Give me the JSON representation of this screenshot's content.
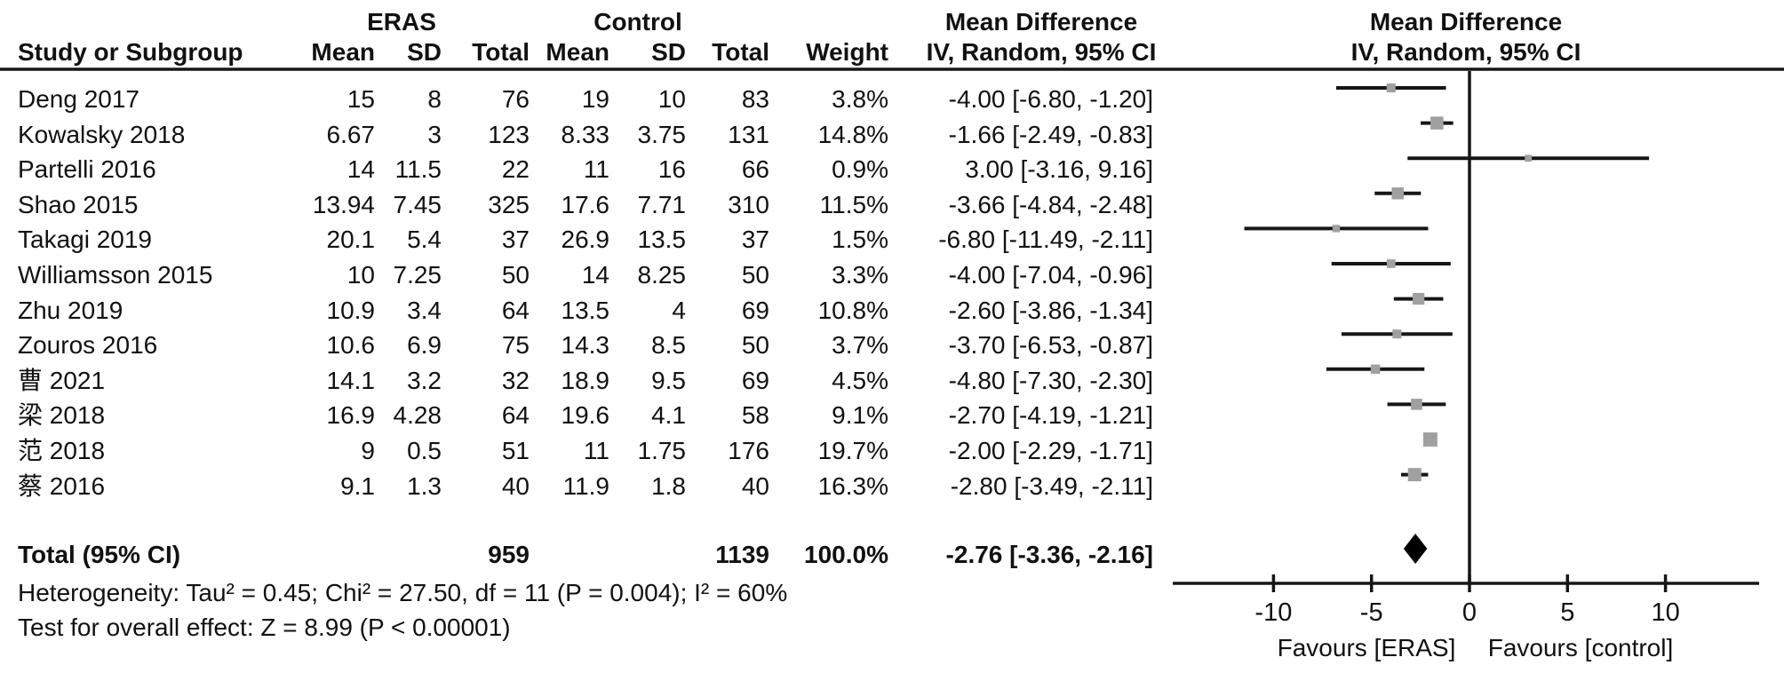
{
  "figure": {
    "group_headers": {
      "eras": "ERAS",
      "control": "Control"
    },
    "effect_header_left": {
      "line1": "Mean Difference",
      "line2": "IV, Random, 95% CI"
    },
    "effect_header_right": {
      "line1": "Mean Difference",
      "line2": "IV, Random, 95% CI"
    },
    "col_headers": {
      "study": "Study or Subgroup",
      "eras_mean": "Mean",
      "eras_sd": "SD",
      "eras_total": "Total",
      "ctrl_mean": "Mean",
      "ctrl_sd": "SD",
      "ctrl_total": "Total",
      "weight": "Weight",
      "ci": "IV, Random, 95% CI"
    },
    "rows": [
      {
        "study": "Deng 2017",
        "eras_mean": "15",
        "eras_sd": "8",
        "eras_total": "76",
        "ctrl_mean": "19",
        "ctrl_sd": "10",
        "ctrl_total": "83",
        "weight": "3.8%",
        "ci": "-4.00 [-6.80, -1.20]"
      },
      {
        "study": "Kowalsky 2018",
        "eras_mean": "6.67",
        "eras_sd": "3",
        "eras_total": "123",
        "ctrl_mean": "8.33",
        "ctrl_sd": "3.75",
        "ctrl_total": "131",
        "weight": "14.8%",
        "ci": "-1.66 [-2.49, -0.83]"
      },
      {
        "study": "Partelli 2016",
        "eras_mean": "14",
        "eras_sd": "11.5",
        "eras_total": "22",
        "ctrl_mean": "11",
        "ctrl_sd": "16",
        "ctrl_total": "66",
        "weight": "0.9%",
        "ci": "3.00 [-3.16, 9.16]"
      },
      {
        "study": "Shao 2015",
        "eras_mean": "13.94",
        "eras_sd": "7.45",
        "eras_total": "325",
        "ctrl_mean": "17.6",
        "ctrl_sd": "7.71",
        "ctrl_total": "310",
        "weight": "11.5%",
        "ci": "-3.66 [-4.84, -2.48]"
      },
      {
        "study": "Takagi 2019",
        "eras_mean": "20.1",
        "eras_sd": "5.4",
        "eras_total": "37",
        "ctrl_mean": "26.9",
        "ctrl_sd": "13.5",
        "ctrl_total": "37",
        "weight": "1.5%",
        "ci": "-6.80 [-11.49, -2.11]"
      },
      {
        "study": "Williamsson 2015",
        "eras_mean": "10",
        "eras_sd": "7.25",
        "eras_total": "50",
        "ctrl_mean": "14",
        "ctrl_sd": "8.25",
        "ctrl_total": "50",
        "weight": "3.3%",
        "ci": "-4.00 [-7.04, -0.96]"
      },
      {
        "study": "Zhu 2019",
        "eras_mean": "10.9",
        "eras_sd": "3.4",
        "eras_total": "64",
        "ctrl_mean": "13.5",
        "ctrl_sd": "4",
        "ctrl_total": "69",
        "weight": "10.8%",
        "ci": "-2.60 [-3.86, -1.34]"
      },
      {
        "study": "Zouros 2016",
        "eras_mean": "10.6",
        "eras_sd": "6.9",
        "eras_total": "75",
        "ctrl_mean": "14.3",
        "ctrl_sd": "8.5",
        "ctrl_total": "50",
        "weight": "3.7%",
        "ci": "-3.70 [-6.53, -0.87]"
      },
      {
        "study": "曹 2021",
        "eras_mean": "14.1",
        "eras_sd": "3.2",
        "eras_total": "32",
        "ctrl_mean": "18.9",
        "ctrl_sd": "9.5",
        "ctrl_total": "69",
        "weight": "4.5%",
        "ci": "-4.80 [-7.30, -2.30]"
      },
      {
        "study": "梁 2018",
        "eras_mean": "16.9",
        "eras_sd": "4.28",
        "eras_total": "64",
        "ctrl_mean": "19.6",
        "ctrl_sd": "4.1",
        "ctrl_total": "58",
        "weight": "9.1%",
        "ci": "-2.70 [-4.19, -1.21]"
      },
      {
        "study": "范 2018",
        "eras_mean": "9",
        "eras_sd": "0.5",
        "eras_total": "51",
        "ctrl_mean": "11",
        "ctrl_sd": "1.75",
        "ctrl_total": "176",
        "weight": "19.7%",
        "ci": "-2.00 [-2.29, -1.71]"
      },
      {
        "study": "蔡 2016",
        "eras_mean": "9.1",
        "eras_sd": "1.3",
        "eras_total": "40",
        "ctrl_mean": "11.9",
        "ctrl_sd": "1.8",
        "ctrl_total": "40",
        "weight": "16.3%",
        "ci": "-2.80 [-3.49, -2.11]"
      }
    ],
    "total": {
      "label": "Total (95% CI)",
      "eras_total": "959",
      "ctrl_total": "1139",
      "weight": "100.0%",
      "ci": "-2.76 [-3.36, -2.16]"
    },
    "heterogeneity": "Heterogeneity: Tau² = 0.45; Chi² = 27.50, df = 11 (P = 0.004); I² = 60%",
    "overall_effect": "Test for overall effect: Z = 8.99 (P < 0.00001)",
    "favours_left": "Favours [ERAS]",
    "favours_right": "Favours [control]"
  },
  "chart_data": {
    "type": "forest",
    "effect_measure": "Mean Difference",
    "model": "IV, Random, 95% CI",
    "x_axis": {
      "ticks": [
        -10,
        -5,
        0,
        5,
        10
      ],
      "range": [
        -15,
        15
      ],
      "label_left": "Favours [ERAS]",
      "label_right": "Favours [control]"
    },
    "studies": [
      {
        "name": "Deng 2017",
        "md": -4.0,
        "lo": -6.8,
        "hi": -1.2,
        "weight_pct": 3.8
      },
      {
        "name": "Kowalsky 2018",
        "md": -1.66,
        "lo": -2.49,
        "hi": -0.83,
        "weight_pct": 14.8
      },
      {
        "name": "Partelli 2016",
        "md": 3.0,
        "lo": -3.16,
        "hi": 9.16,
        "weight_pct": 0.9
      },
      {
        "name": "Shao 2015",
        "md": -3.66,
        "lo": -4.84,
        "hi": -2.48,
        "weight_pct": 11.5
      },
      {
        "name": "Takagi 2019",
        "md": -6.8,
        "lo": -11.49,
        "hi": -2.11,
        "weight_pct": 1.5
      },
      {
        "name": "Williamsson 2015",
        "md": -4.0,
        "lo": -7.04,
        "hi": -0.96,
        "weight_pct": 3.3
      },
      {
        "name": "Zhu 2019",
        "md": -2.6,
        "lo": -3.86,
        "hi": -1.34,
        "weight_pct": 10.8
      },
      {
        "name": "Zouros 2016",
        "md": -3.7,
        "lo": -6.53,
        "hi": -0.87,
        "weight_pct": 3.7
      },
      {
        "name": "曹 2021",
        "md": -4.8,
        "lo": -7.3,
        "hi": -2.3,
        "weight_pct": 4.5
      },
      {
        "name": "梁 2018",
        "md": -2.7,
        "lo": -4.19,
        "hi": -1.21,
        "weight_pct": 9.1
      },
      {
        "name": "范 2018",
        "md": -2.0,
        "lo": -2.29,
        "hi": -1.71,
        "weight_pct": 19.7
      },
      {
        "name": "蔡 2016",
        "md": -2.8,
        "lo": -3.49,
        "hi": -2.11,
        "weight_pct": 16.3
      }
    ],
    "total": {
      "md": -2.76,
      "lo": -3.36,
      "hi": -2.16
    }
  },
  "colors": {
    "text": "#111111",
    "line": "#161616",
    "marker": "#a0a0a0",
    "diamond": "#000000"
  }
}
